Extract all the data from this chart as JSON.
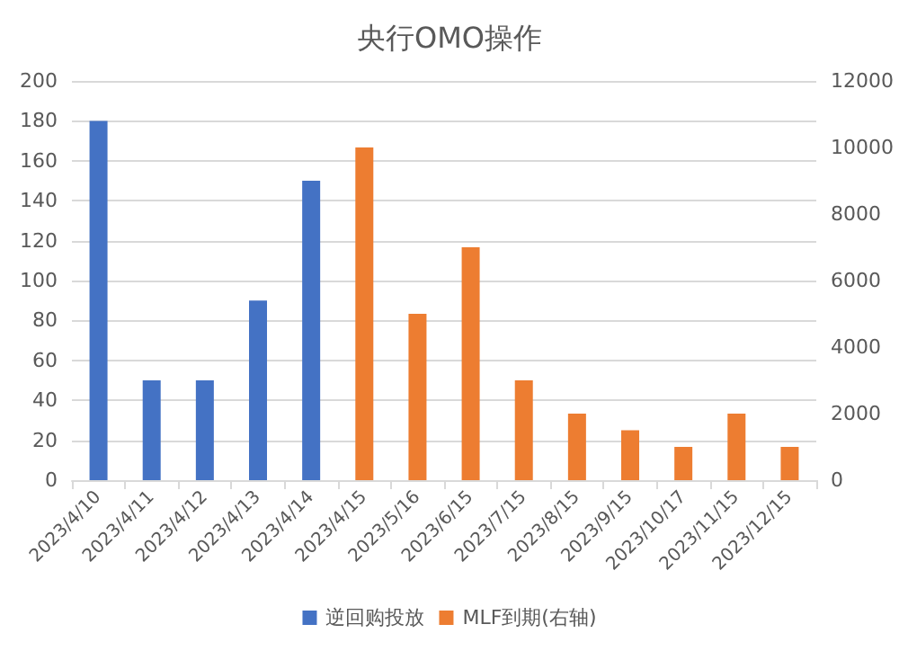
{
  "chart_data": {
    "type": "bar",
    "title": "央行OMO操作",
    "categories": [
      "2023/4/10",
      "2023/4/11",
      "2023/4/12",
      "2023/4/13",
      "2023/4/14",
      "2023/4/15",
      "2023/5/16",
      "2023/6/15",
      "2023/7/15",
      "2023/8/15",
      "2023/9/15",
      "2023/10/17",
      "2023/11/15",
      "2023/12/15"
    ],
    "series": [
      {
        "name": "逆回购投放",
        "color": "#4472c4",
        "values": [
          180,
          50,
          50,
          90,
          150,
          null,
          null,
          null,
          null,
          null,
          null,
          null,
          null,
          null
        ]
      },
      {
        "name": "MLF到期(右轴)",
        "color": "#ed7d31",
        "axis": "y2",
        "values": [
          null,
          null,
          null,
          null,
          null,
          10000,
          5000,
          7000,
          3000,
          2000,
          1500,
          1000,
          2000,
          1000
        ]
      }
    ],
    "ylim": [
      0,
      200
    ],
    "yticks": [
      0,
      20,
      40,
      60,
      80,
      100,
      120,
      140,
      160,
      180,
      200
    ],
    "y2lim": [
      0,
      12000
    ],
    "y2ticks": [
      0,
      2000,
      4000,
      6000,
      8000,
      10000,
      12000
    ],
    "grid": "y",
    "legend": "bottom"
  }
}
